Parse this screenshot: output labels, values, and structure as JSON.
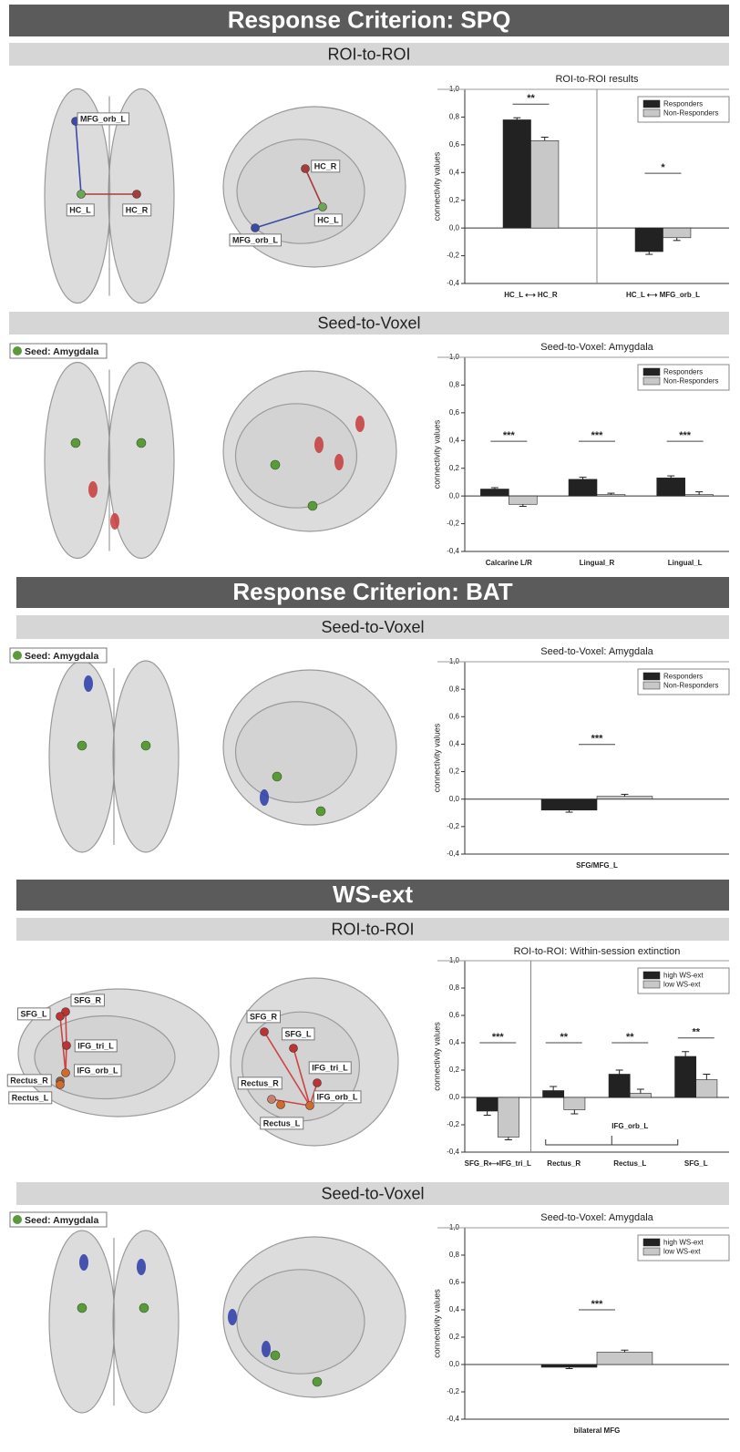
{
  "sections": [
    {
      "title": "Response Criterion: SPQ",
      "subsections": [
        "ROI-to-ROI",
        "Seed-to-Voxel"
      ]
    },
    {
      "title": "Response Criterion: BAT",
      "subsections": [
        "Seed-to-Voxel"
      ]
    },
    {
      "title": "WS-ext",
      "subsections": [
        "ROI-to-ROI",
        "Seed-to-Voxel"
      ]
    }
  ],
  "brain_panels": [
    {
      "views": [
        [
          "MFG_orb_L",
          "HC_L",
          "HC_R"
        ],
        [
          "HC_R",
          "HC_L",
          "MFG_orb_L"
        ]
      ]
    },
    {
      "seed": "Seed: Amygdala"
    },
    {
      "seed": "Seed: Amygdala"
    },
    {
      "views": [
        [
          "SFG_R",
          "SFG_L",
          "IFG_tri_L",
          "IFG_orb_L",
          "Rectus_R",
          "Rectus_L"
        ],
        [
          "SFG_R",
          "SFG_L",
          "IFG_tri_L",
          "Rectus_R",
          "IFG_orb_L",
          "Rectus_L"
        ]
      ]
    },
    {
      "seed": "Seed: Amygdala"
    }
  ],
  "chart_data": [
    {
      "type": "bar",
      "title": "ROI-to-ROI results",
      "y_label": "connectivity values",
      "categories": [
        "HC_L ⟷ HC_R",
        "HC_L ⟷ MFG_orb_L"
      ],
      "series": [
        {
          "name": "Responders",
          "color": "#222222",
          "values": [
            0.78,
            -0.17
          ],
          "errors": [
            0.015,
            0.02
          ]
        },
        {
          "name": "Non-Responders",
          "color": "#c8c8c8",
          "values": [
            0.63,
            -0.07
          ],
          "errors": [
            0.025,
            0.02
          ]
        }
      ],
      "significance": [
        "**",
        "*"
      ],
      "divider": true,
      "ylim": [
        -0.4,
        1.0
      ],
      "yticks": [
        {
          "value": -0.4,
          "label": "-0,4"
        },
        {
          "value": -0.2,
          "label": "-0,2"
        },
        {
          "value": 0,
          "label": "0,0"
        },
        {
          "value": 0.2,
          "label": "0,2"
        },
        {
          "value": 0.4,
          "label": "0,4"
        },
        {
          "value": 0.6,
          "label": "0,6"
        },
        {
          "value": 0.8,
          "label": "0,8"
        },
        {
          "value": 1.0,
          "label": "1,0"
        }
      ],
      "legend": "upper right"
    },
    {
      "type": "bar",
      "title": "Seed-to-Voxel: Amygdala",
      "y_label": "connectivity values",
      "categories": [
        "Calcarine L/R",
        "Lingual_R",
        "Lingual_L"
      ],
      "series": [
        {
          "name": "Responders",
          "color": "#222222",
          "values": [
            0.05,
            0.12,
            0.13
          ],
          "errors": [
            0.01,
            0.015,
            0.015
          ]
        },
        {
          "name": "Non-Responders",
          "color": "#c8c8c8",
          "values": [
            -0.06,
            0.01,
            0.01
          ],
          "errors": [
            0.015,
            0.01,
            0.02
          ]
        }
      ],
      "significance": [
        "***",
        "***",
        "***"
      ],
      "ylim": [
        -0.4,
        1.0
      ],
      "yticks": [
        {
          "value": -0.4,
          "label": "-0,4"
        },
        {
          "value": -0.2,
          "label": "-0,2"
        },
        {
          "value": 0,
          "label": "0,0"
        },
        {
          "value": 0.2,
          "label": "0,2"
        },
        {
          "value": 0.4,
          "label": "0,4"
        },
        {
          "value": 0.6,
          "label": "0,6"
        },
        {
          "value": 0.8,
          "label": "0,8"
        },
        {
          "value": 1.0,
          "label": "1,0"
        }
      ],
      "legend": "upper right"
    },
    {
      "type": "bar",
      "title": "Seed-to-Voxel: Amygdala",
      "y_label": "connectivity values",
      "categories": [
        "SFG/MFG_L"
      ],
      "series": [
        {
          "name": "Responders",
          "color": "#222222",
          "values": [
            -0.08
          ],
          "errors": [
            0.015
          ]
        },
        {
          "name": "Non-Responders",
          "color": "#c8c8c8",
          "values": [
            0.02
          ],
          "errors": [
            0.015
          ]
        }
      ],
      "significance": [
        "***"
      ],
      "ylim": [
        -0.4,
        1.0
      ],
      "yticks": [
        {
          "value": -0.4,
          "label": "-0,4"
        },
        {
          "value": -0.2,
          "label": "-0,2"
        },
        {
          "value": 0,
          "label": "0,0"
        },
        {
          "value": 0.2,
          "label": "0,2"
        },
        {
          "value": 0.4,
          "label": "0,4"
        },
        {
          "value": 0.6,
          "label": "0,6"
        },
        {
          "value": 0.8,
          "label": "0,8"
        },
        {
          "value": 1.0,
          "label": "1,0"
        }
      ],
      "legend": "upper right"
    },
    {
      "type": "bar",
      "title": "ROI-to-ROI: Within-session extinction",
      "y_label": "connectivity values",
      "categories": [
        "SFG_R⟷IFG_tri_L",
        "Rectus_R",
        "Rectus_L",
        "SFG_L"
      ],
      "series": [
        {
          "name": "high WS-ext",
          "color": "#222222",
          "values": [
            -0.1,
            0.05,
            0.17,
            0.3
          ],
          "errors": [
            0.03,
            0.03,
            0.03,
            0.035
          ]
        },
        {
          "name": "low WS-ext",
          "color": "#c8c8c8",
          "values": [
            -0.29,
            -0.09,
            0.03,
            0.13
          ],
          "errors": [
            0.02,
            0.03,
            0.03,
            0.04
          ]
        }
      ],
      "significance": [
        "***",
        "**",
        "**",
        "**"
      ],
      "divider": true,
      "group_label": "IFG_orb_L",
      "ylim": [
        -0.4,
        1.0
      ],
      "yticks": [
        {
          "value": -0.4,
          "label": "-0,4"
        },
        {
          "value": -0.2,
          "label": "-0,2"
        },
        {
          "value": 0,
          "label": "0,0"
        },
        {
          "value": 0.2,
          "label": "0,2"
        },
        {
          "value": 0.4,
          "label": "0,4"
        },
        {
          "value": 0.6,
          "label": "0,6"
        },
        {
          "value": 0.8,
          "label": "0,8"
        },
        {
          "value": 1.0,
          "label": "1,0"
        }
      ],
      "legend": "upper right"
    },
    {
      "type": "bar",
      "title": "Seed-to-Voxel: Amygdala",
      "y_label": "connectivity values",
      "categories": [
        "bilateral MFG"
      ],
      "series": [
        {
          "name": "high WS-ext",
          "color": "#222222",
          "values": [
            -0.02
          ],
          "errors": [
            0.01
          ]
        },
        {
          "name": "low WS-ext",
          "color": "#c8c8c8",
          "values": [
            0.09
          ],
          "errors": [
            0.015
          ]
        }
      ],
      "significance": [
        "***"
      ],
      "ylim": [
        -0.4,
        1.0
      ],
      "yticks": [
        {
          "value": -0.4,
          "label": "-0,4"
        },
        {
          "value": -0.2,
          "label": "-0,2"
        },
        {
          "value": 0,
          "label": "0,0"
        },
        {
          "value": 0.2,
          "label": "0,2"
        },
        {
          "value": 0.4,
          "label": "0,4"
        },
        {
          "value": 0.6,
          "label": "0,6"
        },
        {
          "value": 0.8,
          "label": "0,8"
        },
        {
          "value": 1.0,
          "label": "1,0"
        }
      ],
      "legend": "upper right"
    }
  ]
}
